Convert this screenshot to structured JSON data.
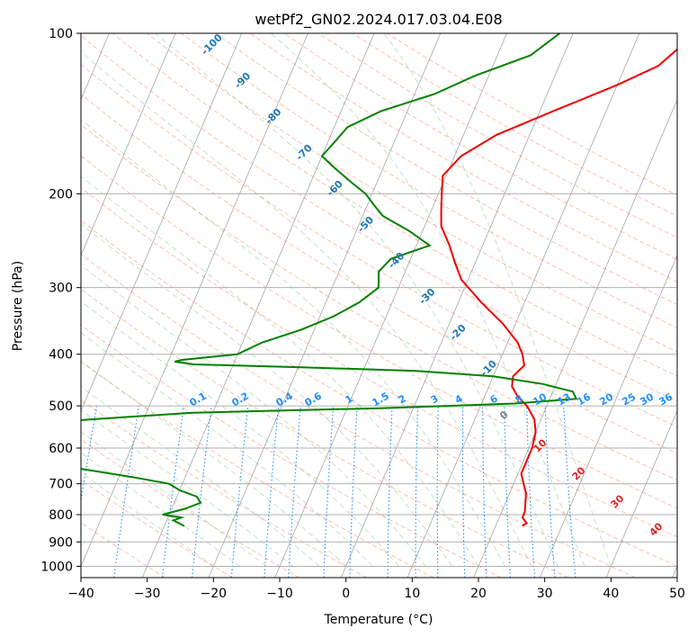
{
  "chart_data": {
    "type": "line",
    "title": "wetPf2_GN02.2024.017.03.04.E08",
    "xlabel": "Temperature (°C)",
    "ylabel": "Pressure (hPa)",
    "xlim": [
      -40,
      50
    ],
    "ylim": [
      1050,
      100
    ],
    "y_scale": "log",
    "grid": true,
    "x_ticks": [
      -40,
      -30,
      -20,
      -10,
      0,
      10,
      20,
      30,
      40,
      50
    ],
    "y_ticks": [
      100,
      200,
      300,
      400,
      500,
      600,
      700,
      800,
      900,
      1000
    ],
    "colors": {
      "temperature": "#ee0000",
      "dewpoint": "#008000",
      "dry_adiabat": "#ff8c69",
      "moist_adiabat": "#66bb66",
      "mixing_ratio": "#1e90ff",
      "isotherm": "#808080",
      "label_neg": "#1f77b4",
      "label_pos": "#d62728",
      "mixing_label": "#1e90ff"
    },
    "isotherm_labels_negative": [
      "-100",
      "-90",
      "-80",
      "-70",
      "-60",
      "-50",
      "-40",
      "-30",
      "-20",
      "-10"
    ],
    "isotherm_label_zero": "0",
    "isotherm_labels_positive": [
      "10",
      "20",
      "30",
      "40"
    ],
    "mixing_ratio_labels": [
      "0.1",
      "0.2",
      "0.4",
      "0.6",
      "1",
      "1.5",
      "2",
      "3",
      "4",
      "6",
      "8",
      "10",
      "13",
      "16",
      "20",
      "25",
      "30",
      "36"
    ],
    "series": [
      {
        "key": "temperature",
        "pressure": [
          100,
          115,
          125,
          140,
          155,
          170,
          185,
          200,
          215,
          230,
          250,
          270,
          290,
          320,
          350,
          380,
          400,
          420,
          440,
          460,
          480,
          500,
          530,
          560,
          600,
          640,
          670,
          700,
          730,
          760,
          790,
          810,
          830,
          840
        ],
        "temperature": [
          18.5,
          15.0,
          10.0,
          2.0,
          -5.0,
          -9.0,
          -10.5,
          -9.5,
          -8.5,
          -7.5,
          -5.0,
          -3.0,
          -1.0,
          3.5,
          8.0,
          11.5,
          13.0,
          14.0,
          13.0,
          13.5,
          15.0,
          17.0,
          19.0,
          20.0,
          20.5,
          20.5,
          20.5,
          21.5,
          22.5,
          23.0,
          23.5,
          23.5,
          24.5,
          24.0
        ]
      },
      {
        "key": "dewpoint",
        "pressure": [
          100,
          110,
          120,
          130,
          140,
          150,
          160,
          170,
          180,
          190,
          200,
          210,
          220,
          235,
          250,
          265,
          280,
          300,
          320,
          340,
          360,
          380,
          400,
          410,
          413,
          418,
          423,
          430,
          440,
          455,
          470,
          485,
          495,
          505,
          515,
          530,
          545,
          560,
          575,
          590,
          605,
          620,
          640,
          660,
          680,
          700,
          720,
          740,
          760,
          780,
          800,
          810,
          820,
          830,
          840
        ],
        "temperature": [
          -2,
          -5,
          -12,
          -17,
          -24,
          -28,
          -29,
          -30,
          -27,
          -24,
          -21,
          -19,
          -17,
          -12,
          -8,
          -13,
          -14,
          -13,
          -15,
          -18,
          -22,
          -27,
          -30,
          -38,
          -39,
          -36,
          -20,
          -2,
          10,
          18,
          23,
          24,
          15,
          -5,
          -33,
          -48,
          -60,
          -62,
          -58,
          -57,
          -58,
          -57,
          -52,
          -45,
          -38,
          -32,
          -30,
          -27,
          -26,
          -28,
          -31,
          -28,
          -29,
          -28,
          -27
        ]
      }
    ]
  }
}
